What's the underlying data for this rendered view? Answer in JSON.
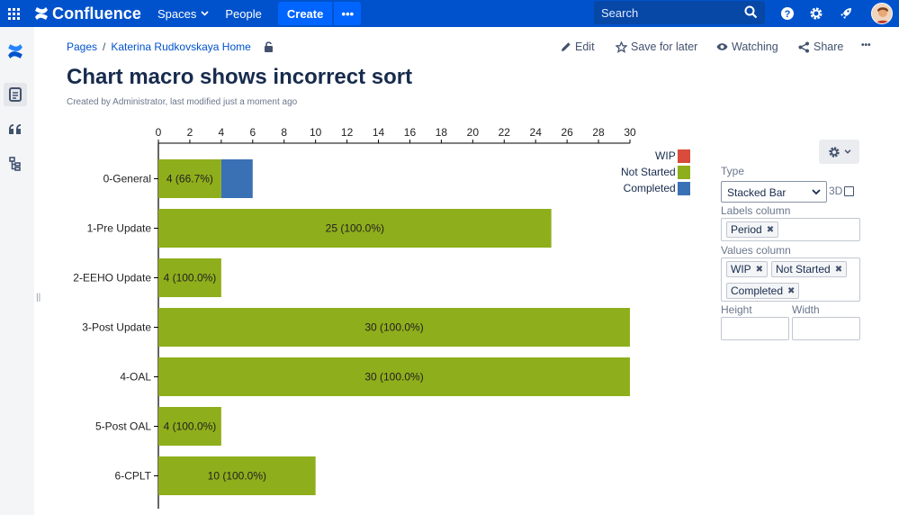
{
  "nav": {
    "product": "Confluence",
    "spaces": "Spaces",
    "people": "People",
    "create": "Create",
    "more": "•••",
    "search_placeholder": "Search"
  },
  "breadcrumb": {
    "root": "Pages",
    "separator": "/",
    "home": "Katerina Rudkovskaya Home"
  },
  "actions": {
    "edit": "Edit",
    "save_for_later": "Save for later",
    "watching": "Watching",
    "share": "Share",
    "more": "•••"
  },
  "page": {
    "title": "Chart macro shows incorrect sort",
    "byline": "Created by Administrator, last modified just a moment ago"
  },
  "chart_data": {
    "type": "bar",
    "orientation": "horizontal",
    "stacked": true,
    "categories": [
      "0-General",
      "1-Pre Update",
      "2-EEHO Update",
      "3-Post Update",
      "4-OAL",
      "5-Post OAL",
      "6-CPLT"
    ],
    "series": [
      {
        "name": "WIP",
        "color": "#D94B3C",
        "values": [
          0,
          0,
          0,
          0,
          0,
          0,
          0
        ]
      },
      {
        "name": "Not Started",
        "color": "#8FAE1B",
        "values": [
          4,
          25,
          4,
          30,
          30,
          4,
          10
        ]
      },
      {
        "name": "Completed",
        "color": "#3A71B5",
        "values": [
          2,
          0,
          0,
          0,
          0,
          0,
          0
        ]
      }
    ],
    "labels": [
      "4 (66.7%)",
      "25 (100.0%)",
      "4 (100.0%)",
      "30 (100.0%)",
      "30 (100.0%)",
      "4 (100.0%)",
      "10 (100.0%)"
    ],
    "xticks": [
      "0",
      "2",
      "4",
      "6",
      "8",
      "10",
      "12",
      "14",
      "16",
      "18",
      "20",
      "22",
      "24",
      "26",
      "28",
      "30"
    ],
    "xlim": [
      0,
      30
    ],
    "axis_position": "top",
    "legend_position": "top-right",
    "title": "",
    "xlabel": "",
    "ylabel": ""
  },
  "macro_panel": {
    "type_label": "Type",
    "type_value": "Stacked Bar",
    "three_d_label": "3D",
    "labels_column_label": "Labels column",
    "labels_tokens": [
      "Period"
    ],
    "values_column_label": "Values column",
    "values_tokens": [
      "WIP",
      "Not Started",
      "Completed"
    ],
    "height_label": "Height",
    "width_label": "Width",
    "remove_symbol": "✖"
  }
}
